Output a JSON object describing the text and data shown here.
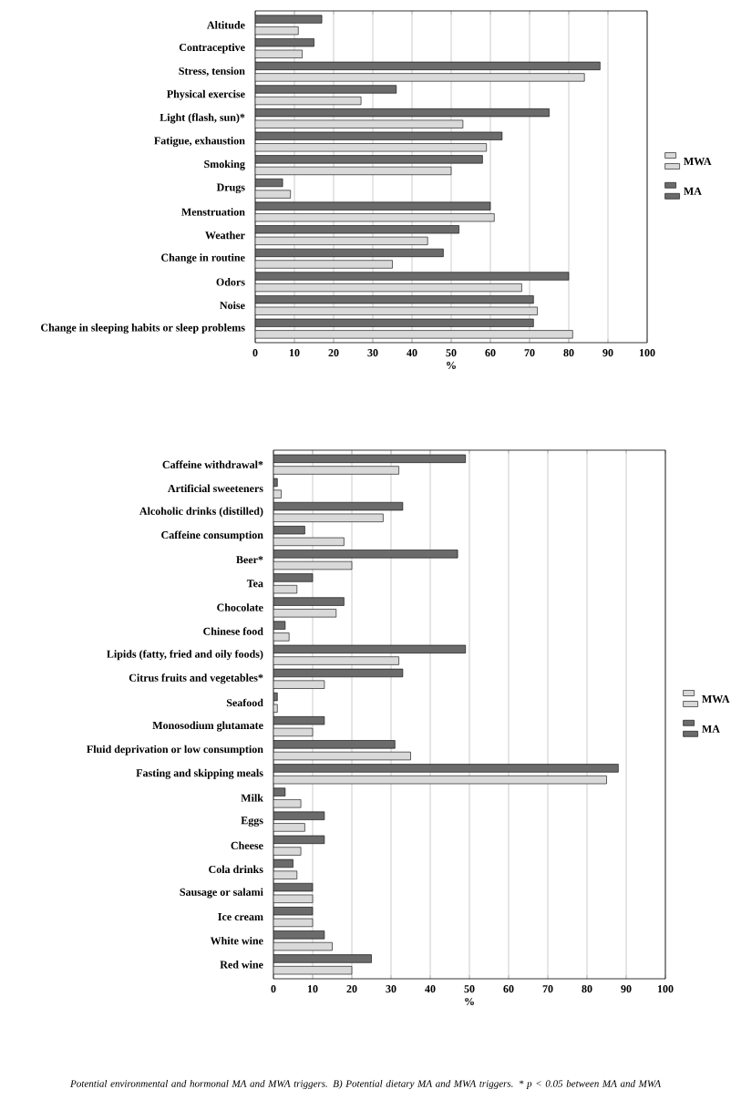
{
  "chart_data": [
    {
      "type": "bar",
      "orientation": "horizontal",
      "xlabel": "%",
      "xlim": [
        0,
        100
      ],
      "xticks": [
        0,
        10,
        20,
        30,
        40,
        50,
        60,
        70,
        80,
        90,
        100
      ],
      "grid": "x",
      "legend": "right",
      "categories": [
        "Altitude",
        "Contraceptive",
        "Stress, tension",
        "Physical exercise",
        "Light (flash, sun)*",
        "Fatigue, exhaustion",
        "Smoking",
        "Drugs",
        "Menstruation",
        "Weather",
        "Change in routine",
        "Odors",
        "Noise",
        "Change in sleeping habits or sleep problems"
      ],
      "series": [
        {
          "name": "MWA",
          "color": "#d9d9d9",
          "values": [
            11,
            12,
            84,
            27,
            53,
            59,
            50,
            9,
            61,
            44,
            35,
            68,
            72,
            81
          ]
        },
        {
          "name": "MA",
          "color": "#6b6b6b",
          "values": [
            17,
            15,
            88,
            36,
            75,
            63,
            58,
            7,
            60,
            52,
            48,
            80,
            71,
            71
          ]
        }
      ]
    },
    {
      "type": "bar",
      "orientation": "horizontal",
      "xlabel": "%",
      "xlim": [
        0,
        100
      ],
      "xticks": [
        0,
        10,
        20,
        30,
        40,
        50,
        60,
        70,
        80,
        90,
        100
      ],
      "grid": "x",
      "legend": "right",
      "categories": [
        "Caffeine withdrawal*",
        "Artificial sweeteners",
        "Alcoholic drinks (distilled)",
        "Caffeine consumption",
        "Beer*",
        "Tea",
        "Chocolate",
        "Chinese food",
        "Lipids (fatty, fried and oily foods)",
        "Citrus fruits and vegetables*",
        "Seafood",
        "Monosodium glutamate",
        "Fluid deprivation or low consumption",
        "Fasting and skipping meals",
        "Milk",
        "Eggs",
        "Cheese",
        "Cola drinks",
        "Sausage or salami",
        "Ice cream",
        "White wine",
        "Red wine"
      ],
      "series": [
        {
          "name": "MWA",
          "color": "#d9d9d9",
          "values": [
            32,
            2,
            28,
            18,
            20,
            6,
            16,
            4,
            32,
            13,
            1,
            10,
            35,
            85,
            7,
            8,
            7,
            6,
            10,
            10,
            15,
            20
          ]
        },
        {
          "name": "MA",
          "color": "#6b6b6b",
          "values": [
            49,
            1,
            33,
            8,
            47,
            10,
            18,
            3,
            49,
            33,
            1,
            13,
            31,
            88,
            3,
            13,
            13,
            5,
            10,
            10,
            13,
            25
          ]
        }
      ],
      "annotations": [
        "Potential environmental and hormonal MA and MWA triggers. B) Potential dietary MA and MWA triggers. * p < 0.05 between MA and MWA"
      ]
    }
  ]
}
